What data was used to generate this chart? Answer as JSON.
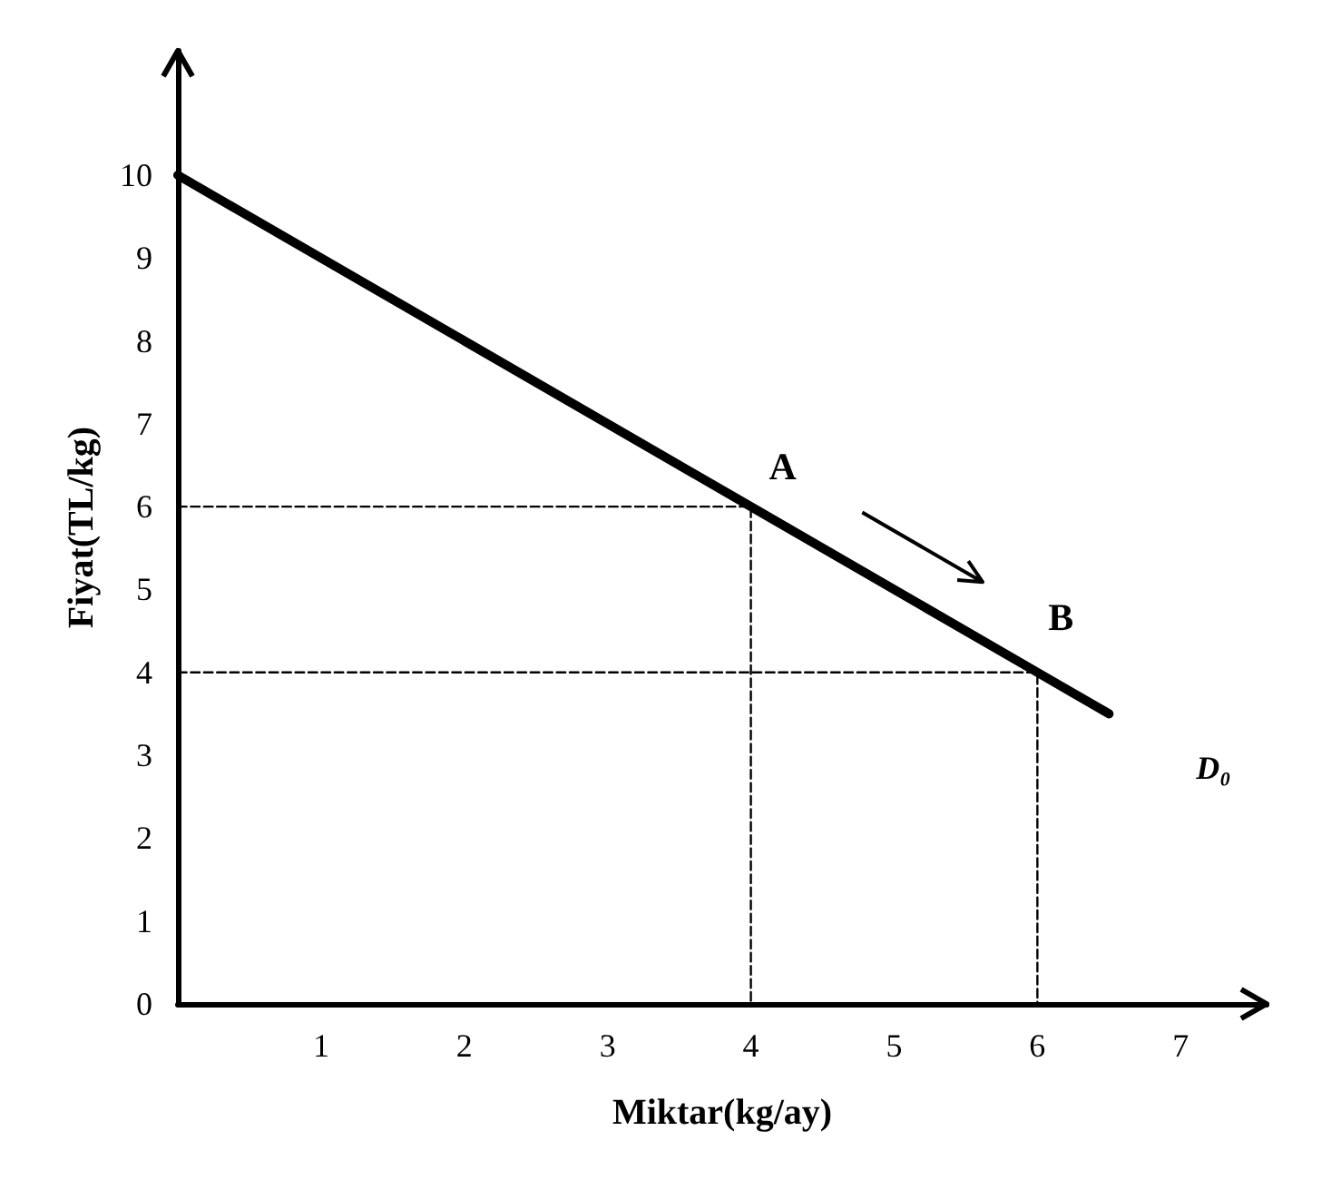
{
  "chart_data": {
    "type": "line",
    "xlabel": "Miktar(kg/ay)",
    "ylabel": "Fiyat(TL/kg)",
    "xlim": [
      0,
      7.6
    ],
    "ylim": [
      0,
      11.5
    ],
    "xticks": [
      1,
      2,
      3,
      4,
      5,
      6,
      7
    ],
    "yticks": [
      0,
      1,
      2,
      3,
      4,
      5,
      6,
      7,
      8,
      9,
      10
    ],
    "marker": "none",
    "grid": false,
    "series": [
      {
        "name": "D₀",
        "color": "#000000",
        "x": [
          0,
          4,
          6,
          6.5
        ],
        "values": [
          10,
          6,
          4,
          3.5
        ],
        "line_style": "solid"
      },
      {
        "color": "#000000",
        "x": [
          0,
          4,
          4
        ],
        "values": [
          6,
          6,
          0
        ],
        "line_style": "dashed"
      },
      {
        "color": "#000000",
        "x": [
          0,
          6,
          6
        ],
        "values": [
          4,
          4,
          0
        ],
        "line_style": "dashed"
      }
    ],
    "annotations": [
      {
        "text": "A",
        "x": 4,
        "y": 6
      },
      {
        "text": "B",
        "x": 6,
        "y": 4
      }
    ]
  }
}
